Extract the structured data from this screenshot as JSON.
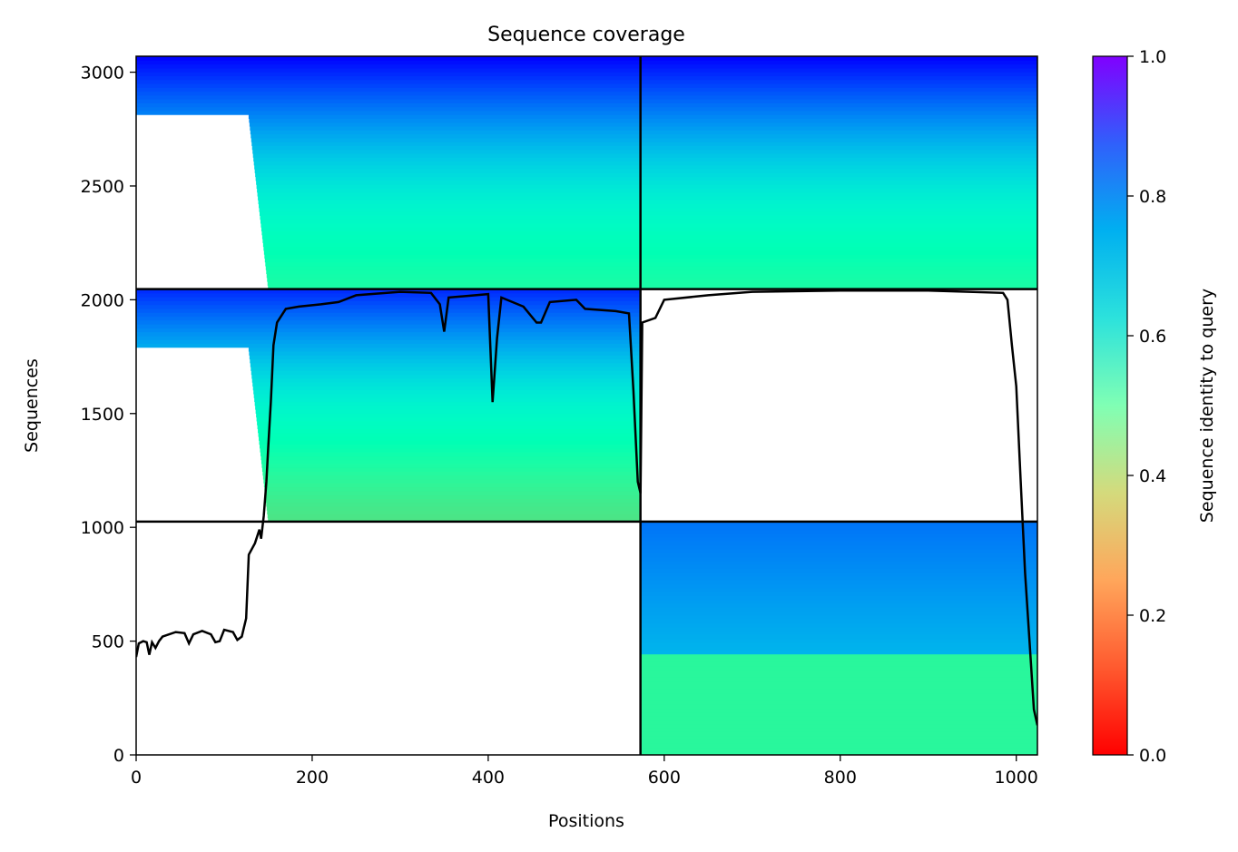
{
  "chart_data": {
    "type": "heatmap",
    "title": "Sequence coverage",
    "xlabel": "Positions",
    "ylabel": "Sequences",
    "xlim": [
      0,
      1024
    ],
    "ylim": [
      0,
      3070
    ],
    "xticks": [
      "0",
      "200",
      "400",
      "600",
      "800",
      "1000"
    ],
    "yticks": [
      "0",
      "500",
      "1000",
      "1500",
      "2000",
      "2500",
      "3000"
    ],
    "colorbar": {
      "label": "Sequence identity to query",
      "colormap": "rainbow_r",
      "range": [
        0,
        1
      ],
      "ticks": [
        "0.0",
        "0.2",
        "0.4",
        "0.6",
        "0.8",
        "1.0"
      ]
    },
    "grid": false,
    "chain_boundaries": {
      "positions": [
        573
      ],
      "sequences": [
        1025,
        2047
      ]
    },
    "blocks": [
      {
        "name": "paired",
        "x": [
          0,
          1024
        ],
        "y": [
          2047,
          3070
        ],
        "identity_bottom": 0.45,
        "identity_top": 1.0,
        "left_gap_to": 120
      },
      {
        "name": "chain-1-unpaired",
        "x": [
          0,
          573
        ],
        "y": [
          1025,
          2047
        ],
        "identity_bottom": 0.35,
        "identity_top": 0.95,
        "left_gap_to": 120
      },
      {
        "name": "chain-2-unpaired",
        "x": [
          573,
          1024
        ],
        "y": [
          0,
          1025
        ],
        "identity_bottom": 0.42,
        "identity_top": 0.85,
        "identity_step_at": 450
      }
    ],
    "coverage_line": {
      "color": "#000000",
      "points": [
        [
          0,
          430
        ],
        [
          3,
          490
        ],
        [
          8,
          500
        ],
        [
          12,
          495
        ],
        [
          15,
          440
        ],
        [
          18,
          495
        ],
        [
          22,
          470
        ],
        [
          26,
          500
        ],
        [
          30,
          520
        ],
        [
          45,
          540
        ],
        [
          55,
          535
        ],
        [
          60,
          490
        ],
        [
          65,
          530
        ],
        [
          75,
          545
        ],
        [
          85,
          530
        ],
        [
          90,
          495
        ],
        [
          95,
          500
        ],
        [
          100,
          550
        ],
        [
          110,
          540
        ],
        [
          115,
          505
        ],
        [
          120,
          520
        ],
        [
          125,
          600
        ],
        [
          128,
          880
        ],
        [
          135,
          930
        ],
        [
          140,
          990
        ],
        [
          142,
          950
        ],
        [
          145,
          1050
        ],
        [
          148,
          1200
        ],
        [
          150,
          1350
        ],
        [
          153,
          1550
        ],
        [
          156,
          1800
        ],
        [
          160,
          1900
        ],
        [
          170,
          1960
        ],
        [
          185,
          1970
        ],
        [
          210,
          1980
        ],
        [
          230,
          1990
        ],
        [
          250,
          2020
        ],
        [
          300,
          2035
        ],
        [
          335,
          2030
        ],
        [
          345,
          1980
        ],
        [
          350,
          1860
        ],
        [
          355,
          2010
        ],
        [
          400,
          2025
        ],
        [
          405,
          1550
        ],
        [
          410,
          1830
        ],
        [
          415,
          2010
        ],
        [
          440,
          1970
        ],
        [
          455,
          1900
        ],
        [
          460,
          1900
        ],
        [
          470,
          1990
        ],
        [
          500,
          2000
        ],
        [
          510,
          1960
        ],
        [
          545,
          1950
        ],
        [
          560,
          1940
        ],
        [
          565,
          1600
        ],
        [
          570,
          1200
        ],
        [
          573,
          1150
        ],
        [
          575,
          1900
        ],
        [
          590,
          1920
        ],
        [
          600,
          2000
        ],
        [
          650,
          2020
        ],
        [
          700,
          2035
        ],
        [
          800,
          2040
        ],
        [
          900,
          2040
        ],
        [
          985,
          2030
        ],
        [
          990,
          2000
        ],
        [
          995,
          1800
        ],
        [
          1000,
          1620
        ],
        [
          1005,
          1200
        ],
        [
          1010,
          800
        ],
        [
          1015,
          500
        ],
        [
          1020,
          200
        ],
        [
          1024,
          130
        ]
      ]
    }
  }
}
